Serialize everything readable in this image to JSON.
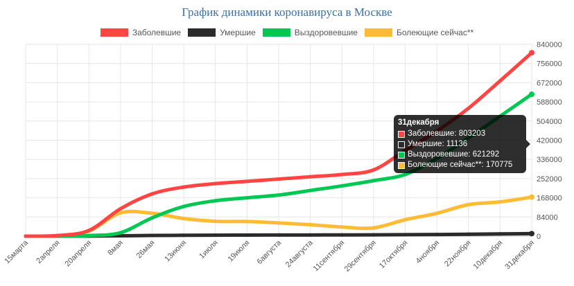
{
  "chart_data": {
    "type": "line",
    "title": "График динамики коронавируса в Москве",
    "x_labels": [
      "15марта",
      "2апреля",
      "20апреля",
      "8мая",
      "26мая",
      "13июня",
      "1июля",
      "19июля",
      "6августа",
      "24августа",
      "11сентября",
      "29сентября",
      "17октября",
      "4ноября",
      "22ноября",
      "10декабря",
      "31декабря"
    ],
    "x": [
      "15марта",
      "2апреля",
      "20апреля",
      "8мая",
      "26мая",
      "13июня",
      "1июля",
      "19июля",
      "6августа",
      "24августа",
      "11сентября",
      "29сентября",
      "17октября",
      "4ноября",
      "22ноября",
      "10декабря",
      "31декабря"
    ],
    "y_ticks": [
      0,
      84000,
      168000,
      252000,
      336000,
      420000,
      504000,
      588000,
      672000,
      756000,
      840000
    ],
    "ylim": [
      0,
      840000
    ],
    "y_axis_position": "right",
    "grid": true,
    "legend_position": "top",
    "series": [
      {
        "name": "Заболевшие",
        "color": "#ff4444",
        "values": [
          0,
          2500,
          25000,
          120000,
          185000,
          215000,
          230000,
          240000,
          250000,
          260000,
          270000,
          290000,
          375000,
          460000,
          560000,
          680000,
          803203
        ]
      },
      {
        "name": "Умершие",
        "color": "#2b2b2b",
        "values": [
          0,
          10,
          300,
          1600,
          2900,
          3700,
          4300,
          4600,
          4900,
          5100,
          5300,
          5700,
          6300,
          7200,
          8400,
          9900,
          11136
        ]
      },
      {
        "name": "Выздоровевшие",
        "color": "#00c853",
        "values": [
          0,
          300,
          2500,
          15000,
          80000,
          130000,
          155000,
          168000,
          180000,
          200000,
          220000,
          243000,
          270000,
          340000,
          430000,
          525000,
          621292
        ]
      },
      {
        "name": "Болеющие сейчас**",
        "color": "#ffbb33",
        "values": [
          0,
          2100,
          22000,
          102000,
          100000,
          77000,
          65000,
          64000,
          58000,
          50000,
          40000,
          36000,
          72000,
          100000,
          138000,
          150000,
          170775
        ]
      }
    ]
  },
  "tooltip": {
    "title": "31декабря",
    "rows": [
      {
        "label": "Заболевшие: 803203",
        "color": "#ff4444"
      },
      {
        "label": "Умершие: 11136",
        "color": "#2b2b2b"
      },
      {
        "label": "Выздоровевшие: 621292",
        "color": "#00c853"
      },
      {
        "label": "Болеющие сейчас**: 170775",
        "color": "#ffbb33"
      }
    ]
  }
}
